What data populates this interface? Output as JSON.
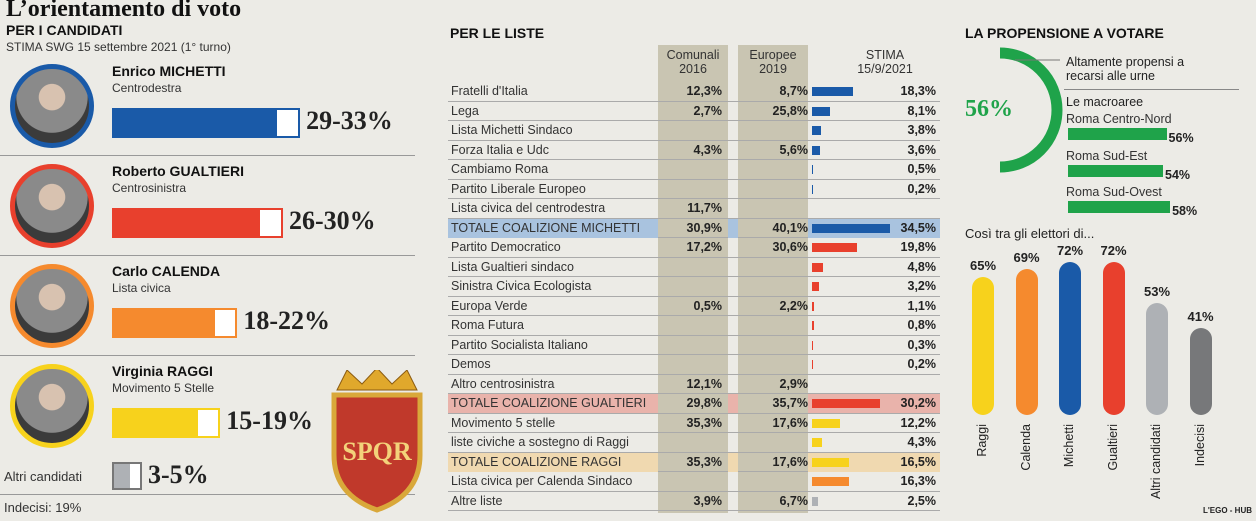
{
  "title": "L’orientamento di voto",
  "left": {
    "heading": "PER I CANDIDATI",
    "source": "STIMA SWG 15 settembre 2021 (1° turno)",
    "candidates": [
      {
        "name": "Enrico MICHETTI",
        "party": "Centrodestra",
        "range": "29-33%",
        "low": 29,
        "high": 33,
        "color": "#1a5aa8"
      },
      {
        "name": "Roberto GUALTIERI",
        "party": "Centrosinistra",
        "range": "26-30%",
        "low": 26,
        "high": 30,
        "color": "#e8402d"
      },
      {
        "name": "Carlo CALENDA",
        "party": "Lista civica",
        "range": "18-22%",
        "low": 18,
        "high": 22,
        "color": "#f58a2e"
      },
      {
        "name": "Virginia RAGGI",
        "party": "Movimento 5 Stelle",
        "range": "15-19%",
        "low": 15,
        "high": 19,
        "color": "#f7d21c"
      }
    ],
    "others": {
      "label": "Altri candidati",
      "range": "3-5%",
      "low": 3,
      "high": 5,
      "color": "#aeb1b5"
    },
    "undecided": "Indecisi: 19%",
    "crest_text": "SPQR"
  },
  "chart_data": [
    {
      "type": "table",
      "title": "PER LE LISTE",
      "columns": [
        "",
        "Comunali 2016",
        "Europee 2019",
        "STIMA 15/9/2021"
      ],
      "rows": [
        {
          "label": "Fratelli d'Italia",
          "c2016": "12,3%",
          "e2019": "8,7%",
          "stima": "18,3%",
          "v": 18.3,
          "color": "#1a5aa8"
        },
        {
          "label": "Lega",
          "c2016": "2,7%",
          "e2019": "25,8%",
          "stima": "8,1%",
          "v": 8.1,
          "color": "#1a5aa8"
        },
        {
          "label": "Lista Michetti Sindaco",
          "c2016": "",
          "e2019": "",
          "stima": "3,8%",
          "v": 3.8,
          "color": "#1a5aa8"
        },
        {
          "label": "Forza Italia e Udc",
          "c2016": "4,3%",
          "e2019": "5,6%",
          "stima": "3,6%",
          "v": 3.6,
          "color": "#1a5aa8"
        },
        {
          "label": "Cambiamo Roma",
          "c2016": "",
          "e2019": "",
          "stima": "0,5%",
          "v": 0.5,
          "color": "#1a5aa8"
        },
        {
          "label": "Partito Liberale Europeo",
          "c2016": "",
          "e2019": "",
          "stima": "0,2%",
          "v": 0.2,
          "color": "#1a5aa8"
        },
        {
          "label": "Lista civica del centrodestra",
          "c2016": "11,7%",
          "e2019": "",
          "stima": "",
          "v": 0,
          "color": "#1a5aa8"
        },
        {
          "label": "TOTALE COALIZIONE MICHETTI",
          "c2016": "30,9%",
          "e2019": "40,1%",
          "stima": "34,5%",
          "v": 34.5,
          "color": "#1a5aa8",
          "total": "#a9c3df"
        },
        {
          "label": "Partito Democratico",
          "c2016": "17,2%",
          "e2019": "30,6%",
          "stima": "19,8%",
          "v": 19.8,
          "color": "#e8402d"
        },
        {
          "label": "Lista Gualtieri sindaco",
          "c2016": "",
          "e2019": "",
          "stima": "4,8%",
          "v": 4.8,
          "color": "#e8402d"
        },
        {
          "label": "Sinistra Civica Ecologista",
          "c2016": "",
          "e2019": "",
          "stima": "3,2%",
          "v": 3.2,
          "color": "#e8402d"
        },
        {
          "label": "Europa Verde",
          "c2016": "0,5%",
          "e2019": "2,2%",
          "stima": "1,1%",
          "v": 1.1,
          "color": "#e8402d"
        },
        {
          "label": "Roma Futura",
          "c2016": "",
          "e2019": "",
          "stima": "0,8%",
          "v": 0.8,
          "color": "#e8402d"
        },
        {
          "label": "Partito Socialista Italiano",
          "c2016": "",
          "e2019": "",
          "stima": "0,3%",
          "v": 0.3,
          "color": "#e8402d"
        },
        {
          "label": "Demos",
          "c2016": "",
          "e2019": "",
          "stima": "0,2%",
          "v": 0.2,
          "color": "#e8402d"
        },
        {
          "label": "Altro centrosinistra",
          "c2016": "12,1%",
          "e2019": "2,9%",
          "stima": "",
          "v": 0,
          "color": "#e8402d"
        },
        {
          "label": "TOTALE COALIZIONE GUALTIERI",
          "c2016": "29,8%",
          "e2019": "35,7%",
          "stima": "30,2%",
          "v": 30.2,
          "color": "#e8402d",
          "total": "#e9b3ab"
        },
        {
          "label": "Movimento 5 stelle",
          "c2016": "35,3%",
          "e2019": "17,6%",
          "stima": "12,2%",
          "v": 12.2,
          "color": "#f7d21c"
        },
        {
          "label": "liste civiche a sostegno di Raggi",
          "c2016": "",
          "e2019": "",
          "stima": "4,3%",
          "v": 4.3,
          "color": "#f7d21c"
        },
        {
          "label": "TOTALE COALIZIONE RAGGI",
          "c2016": "35,3%",
          "e2019": "17,6%",
          "stima": "16,5%",
          "v": 16.5,
          "color": "#f7d21c",
          "total": "#f0d9b0"
        },
        {
          "label": "Lista civica per Calenda Sindaco",
          "c2016": "",
          "e2019": "",
          "stima": "16,3%",
          "v": 16.3,
          "color": "#f58a2e"
        },
        {
          "label": "Altre liste",
          "c2016": "3,9%",
          "e2019": "6,7%",
          "stima": "2,5%",
          "v": 2.5,
          "color": "#aeb1b5"
        }
      ]
    },
    {
      "type": "bar",
      "title": "LA PROPENSIONE A VOTARE",
      "headline": "56%",
      "headline_value": 56,
      "headline_label": "Altamente propensi a recarsi alle urne",
      "subtitle": "Le macroaree",
      "categories": [
        "Roma Centro-Nord",
        "Roma Sud-Est",
        "Roma Sud-Ovest"
      ],
      "values": [
        56,
        54,
        58
      ],
      "labels": [
        "56%",
        "54%",
        "58%"
      ],
      "color": "#1fa34a"
    },
    {
      "type": "bar",
      "title": "Così tra gli elettori di...",
      "categories": [
        "Raggi",
        "Calenda",
        "Michetti",
        "Gualtieri",
        "Altri candidati",
        "Indecisi"
      ],
      "values": [
        65,
        69,
        72,
        72,
        53,
        41
      ],
      "labels": [
        "65%",
        "69%",
        "72%",
        "72%",
        "53%",
        "41%"
      ],
      "colors": [
        "#f7d21c",
        "#f58a2e",
        "#1a5aa8",
        "#e8402d",
        "#aeb1b5",
        "#77787a"
      ]
    }
  ],
  "credit": "L'EGO - HUB"
}
